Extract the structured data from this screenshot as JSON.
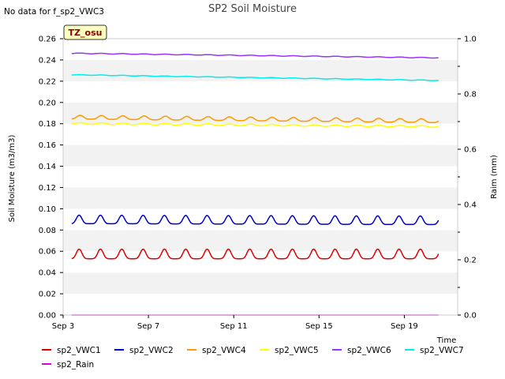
{
  "chart_data": {
    "type": "line",
    "title": "SP2 Soil Moisture",
    "no_data_message": "No data for f_sp2_VWC3",
    "site_badge": "TZ_osu",
    "xlabel": "Time",
    "ylabel": "Soil Moisture (m3/m3)",
    "y2label": "Raim (mm)",
    "xlim": [
      0,
      18.5
    ],
    "ylim": [
      0,
      0.26
    ],
    "y2lim": [
      0,
      1.0
    ],
    "x_ticks": [
      {
        "value": 0,
        "label": "Sep 3"
      },
      {
        "value": 4,
        "label": "Sep 7"
      },
      {
        "value": 8,
        "label": "Sep 11"
      },
      {
        "value": 12,
        "label": "Sep 15"
      },
      {
        "value": 16,
        "label": "Sep 19"
      }
    ],
    "y_ticks": [
      "0.00",
      "0.02",
      "0.04",
      "0.06",
      "0.08",
      "0.10",
      "0.12",
      "0.14",
      "0.16",
      "0.18",
      "0.20",
      "0.22",
      "0.24",
      "0.26"
    ],
    "y2_ticks": [
      "0.0",
      "0.2",
      "0.4",
      "0.6",
      "0.8",
      "1.0"
    ],
    "y2_ticks_values": [
      0,
      0.2,
      0.4,
      0.6,
      0.8,
      1.0
    ],
    "grid": "horizontal bands",
    "legend_position": "bottom",
    "series": [
      {
        "name": "sp2_VWC1",
        "color": "#dd0000",
        "axis": "left",
        "x_start": 0.4,
        "x_end": 17.6,
        "base": 0.053,
        "slope": 0.0,
        "amplitude": 0.009,
        "period": 1.0,
        "phase": 0.75,
        "sharpness": 3
      },
      {
        "name": "sp2_VWC2",
        "color": "#0000cc",
        "axis": "left",
        "x_start": 0.4,
        "x_end": 17.6,
        "base": 0.086,
        "slope": -5e-05,
        "amplitude": 0.008,
        "period": 1.0,
        "phase": 0.75,
        "sharpness": 3
      },
      {
        "name": "sp2_VWC4",
        "color": "#ff9900",
        "axis": "left",
        "x_start": 0.4,
        "x_end": 17.6,
        "base": 0.1845,
        "slope": -0.0002,
        "amplitude": 0.0035,
        "period": 1.0,
        "phase": 0.8,
        "sharpness": 2
      },
      {
        "name": "sp2_VWC5",
        "color": "#ffff00",
        "axis": "left",
        "x_start": 0.4,
        "x_end": 17.6,
        "base": 0.1795,
        "slope": -0.00017,
        "amplitude": 0.0015,
        "period": 1.0,
        "phase": 0.8,
        "sharpness": 1
      },
      {
        "name": "sp2_VWC6",
        "color": "#9933ff",
        "axis": "left",
        "x_start": 0.4,
        "x_end": 17.6,
        "base": 0.246,
        "slope": -0.00025,
        "amplitude": 0.0006,
        "period": 1.0,
        "phase": 0.8,
        "sharpness": 1
      },
      {
        "name": "sp2_VWC7",
        "color": "#00eeee",
        "axis": "left",
        "x_start": 0.4,
        "x_end": 17.6,
        "base": 0.2258,
        "slope": -0.00031,
        "amplitude": 0.0005,
        "period": 1.0,
        "phase": 0.8,
        "sharpness": 1
      },
      {
        "name": "sp2_Rain",
        "color": "#dd00dd",
        "axis": "right",
        "x_start": 0.4,
        "x_end": 17.6,
        "base": 0.0,
        "slope": 0.0,
        "amplitude": 0.0,
        "period": 1.0,
        "phase": 0.0,
        "sharpness": 1
      }
    ]
  }
}
